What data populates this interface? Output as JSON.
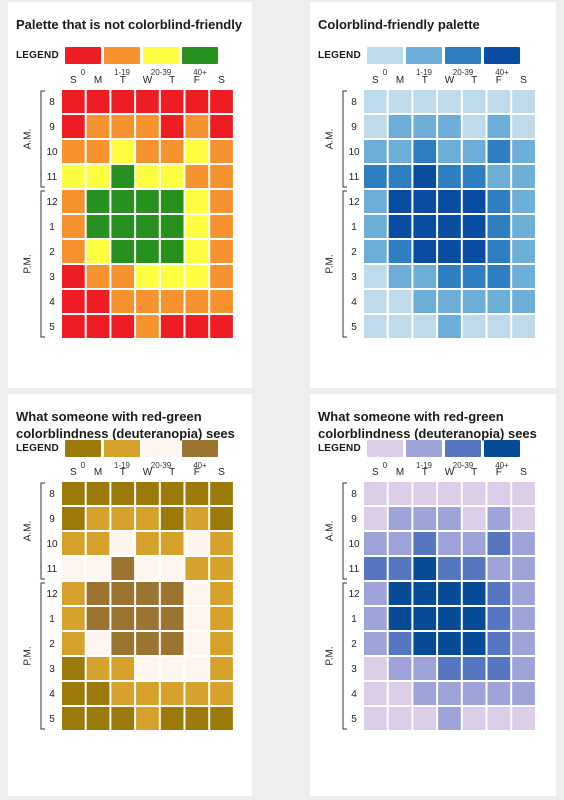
{
  "legend_label": "LEGEND",
  "bins": [
    "0",
    "1-19",
    "20-39",
    "40+"
  ],
  "days": [
    "S",
    "M",
    "T",
    "W",
    "T",
    "F",
    "S"
  ],
  "hours": [
    "8",
    "9",
    "10",
    "11",
    "12",
    "1",
    "2",
    "3",
    "4",
    "5"
  ],
  "groups": [
    {
      "label": "A.M.",
      "rows": [
        0,
        3
      ]
    },
    {
      "label": "P.M.",
      "rows": [
        4,
        9
      ]
    }
  ],
  "panels": [
    {
      "title": "Palette that is not colorblind-friendly",
      "colors": [
        "#ee1d23",
        "#f7932f",
        "#ffff42",
        "#27901f"
      ]
    },
    {
      "title": "Colorblind-friendly palette",
      "colors": [
        "#bfdaea",
        "#6caed7",
        "#2e7fc1",
        "#084da1"
      ]
    },
    {
      "title": "What someone with  red-green\ncolorblindness (deuteranopia) sees",
      "colors": [
        "#9c7a09",
        "#d6a22b",
        "#fff7ef",
        "#9c7432"
      ]
    },
    {
      "title": "What someone with  red-green\ncolorblindness (deuteranopia) sees",
      "colors": [
        "#dccde9",
        "#9ea4da",
        "#5676c1",
        "#074b97"
      ]
    }
  ],
  "chart_data": {
    "type": "heatmap",
    "categories": [
      "S",
      "M",
      "T",
      "W",
      "T",
      "F",
      "S"
    ],
    "rows": [
      "8",
      "9",
      "10",
      "11",
      "12",
      "1",
      "2",
      "3",
      "4",
      "5"
    ],
    "value_bins": [
      "0",
      "1-19",
      "20-39",
      "40+"
    ],
    "bin_index": [
      [
        0,
        0,
        0,
        0,
        0,
        0,
        0
      ],
      [
        0,
        1,
        1,
        1,
        0,
        1,
        0
      ],
      [
        1,
        1,
        2,
        1,
        1,
        2,
        1
      ],
      [
        2,
        2,
        3,
        2,
        2,
        1,
        1
      ],
      [
        1,
        3,
        3,
        3,
        3,
        2,
        1
      ],
      [
        1,
        3,
        3,
        3,
        3,
        2,
        1
      ],
      [
        1,
        2,
        3,
        3,
        3,
        2,
        1
      ],
      [
        0,
        1,
        1,
        2,
        2,
        2,
        1
      ],
      [
        0,
        0,
        1,
        1,
        1,
        1,
        1
      ],
      [
        0,
        0,
        0,
        1,
        0,
        0,
        0
      ]
    ]
  }
}
